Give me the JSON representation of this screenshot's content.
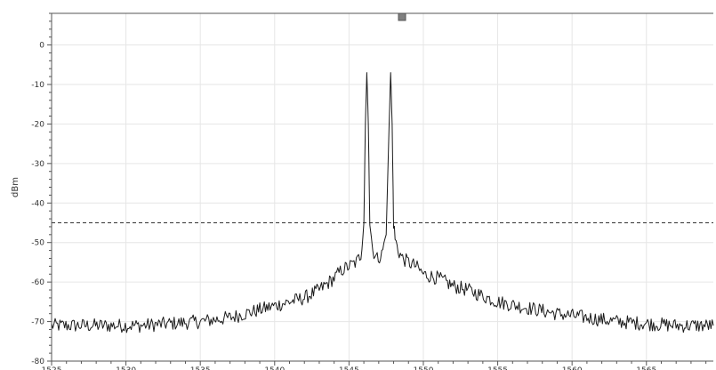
{
  "chart_data": {
    "type": "line",
    "title": "",
    "xlabel": "",
    "ylabel": "dBm",
    "xlim": [
      1525,
      1569.5
    ],
    "ylim": [
      -80,
      8
    ],
    "x_ticks": [
      1525,
      1530,
      1535,
      1540,
      1545,
      1550,
      1555,
      1560,
      1565
    ],
    "y_ticks": [
      0,
      -10,
      -20,
      -30,
      -40,
      -50,
      -60,
      -70,
      -80
    ],
    "grid": true,
    "reference_line": {
      "y": -45,
      "style": "dashed"
    },
    "series": [
      {
        "color": "#1a1a1a",
        "x": [
          1525,
          1527,
          1529,
          1531,
          1533,
          1535,
          1537,
          1539,
          1540,
          1541,
          1542,
          1543,
          1544,
          1544.5,
          1545,
          1545.5,
          1545.8,
          1546,
          1546.1,
          1546.2,
          1546.3,
          1546.4,
          1546.6,
          1546.9,
          1547.2,
          1547.5,
          1547.7,
          1547.8,
          1547.9,
          1548.0,
          1548.1,
          1548.3,
          1548.6,
          1549,
          1549.5,
          1550,
          1551,
          1552,
          1553,
          1555,
          1557,
          1559,
          1561,
          1563,
          1565,
          1567,
          1569.5
        ],
        "y": [
          -71,
          -71,
          -71,
          -71,
          -70.5,
          -70,
          -69,
          -67,
          -66,
          -65,
          -64,
          -62,
          -59,
          -57,
          -56,
          -55,
          -53,
          -45,
          -20,
          -7,
          -20,
          -45,
          -52,
          -54,
          -53,
          -48,
          -20,
          -7,
          -20,
          -45,
          -49,
          -52,
          -54,
          -55,
          -56,
          -58,
          -59,
          -61,
          -62,
          -65,
          -66.5,
          -68,
          -69,
          -70,
          -70.5,
          -71,
          -71
        ]
      }
    ]
  },
  "ui": {
    "top_marker_color": "#808080"
  }
}
